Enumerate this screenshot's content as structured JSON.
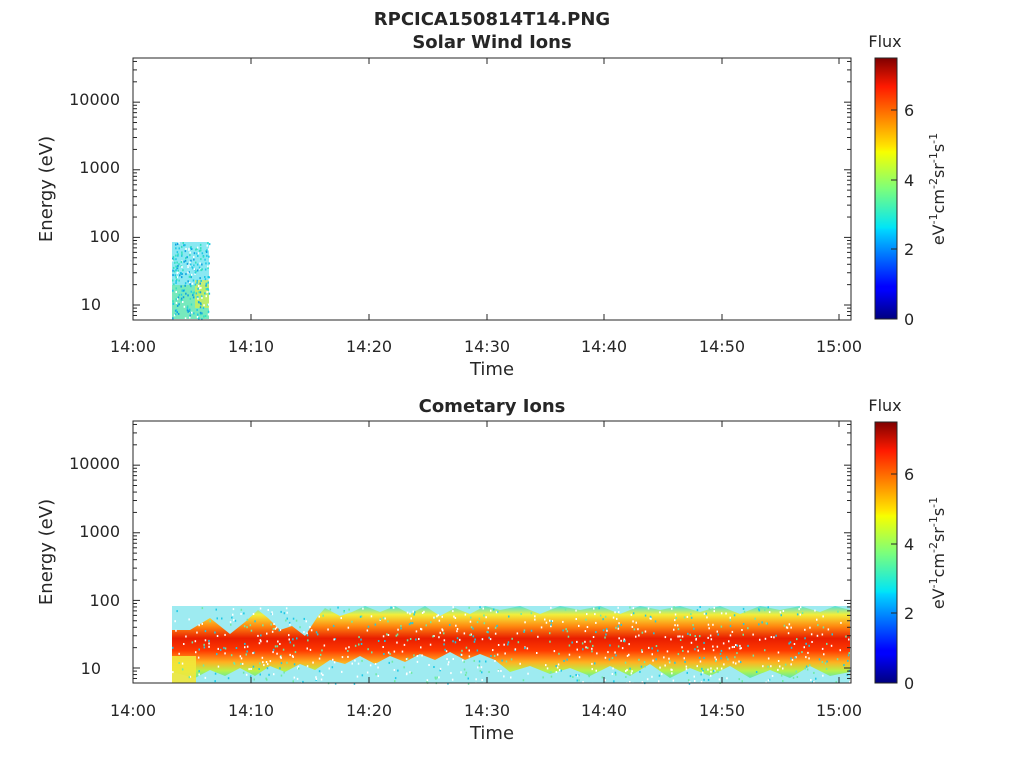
{
  "figure": {
    "title": "RPCICA150814T14.PNG"
  },
  "chart_data": [
    {
      "type": "heatmap",
      "title": "Solar Wind Ions",
      "xlabel": "Time",
      "ylabel": "Energy (eV)",
      "x_ticks": [
        "14:00",
        "14:10",
        "14:20",
        "14:30",
        "14:40",
        "14:50",
        "15:00"
      ],
      "x_range_minutes": [
        0,
        60.5
      ],
      "y_ticks": [
        "10",
        "100",
        "1000",
        "10000"
      ],
      "y_scale": "log",
      "y_range": [
        6,
        45000
      ],
      "colorbar": {
        "title": "Flux",
        "label": "eV-1cm-2sr-1s-1",
        "ticks": [
          "0",
          "2",
          "4",
          "6"
        ],
        "range": [
          0,
          7.5
        ],
        "colormap": "jet"
      },
      "data_regions": [
        {
          "t_start_min": 3.3,
          "t_end_min": 6.4,
          "e_min": 6,
          "e_max": 80,
          "flux_level": "2-4"
        }
      ]
    },
    {
      "type": "heatmap",
      "title": "Cometary Ions",
      "xlabel": "Time",
      "ylabel": "Energy (eV)",
      "x_ticks": [
        "14:00",
        "14:10",
        "14:20",
        "14:30",
        "14:40",
        "14:50",
        "15:00"
      ],
      "x_range_minutes": [
        0,
        60.5
      ],
      "y_ticks": [
        "10",
        "100",
        "1000",
        "10000"
      ],
      "y_scale": "log",
      "y_range": [
        6,
        45000
      ],
      "colorbar": {
        "title": "Flux",
        "label": "eV-1cm-2sr-1s-1",
        "ticks": [
          "0",
          "2",
          "4",
          "6"
        ],
        "range": [
          0,
          7.5
        ],
        "colormap": "jet"
      },
      "data_regions": [
        {
          "t_start_min": 3.3,
          "t_end_min": 60.5,
          "e_min": 6,
          "e_max": 80,
          "flux_level": "2-7",
          "peak_energy_ev": 25
        }
      ]
    }
  ]
}
